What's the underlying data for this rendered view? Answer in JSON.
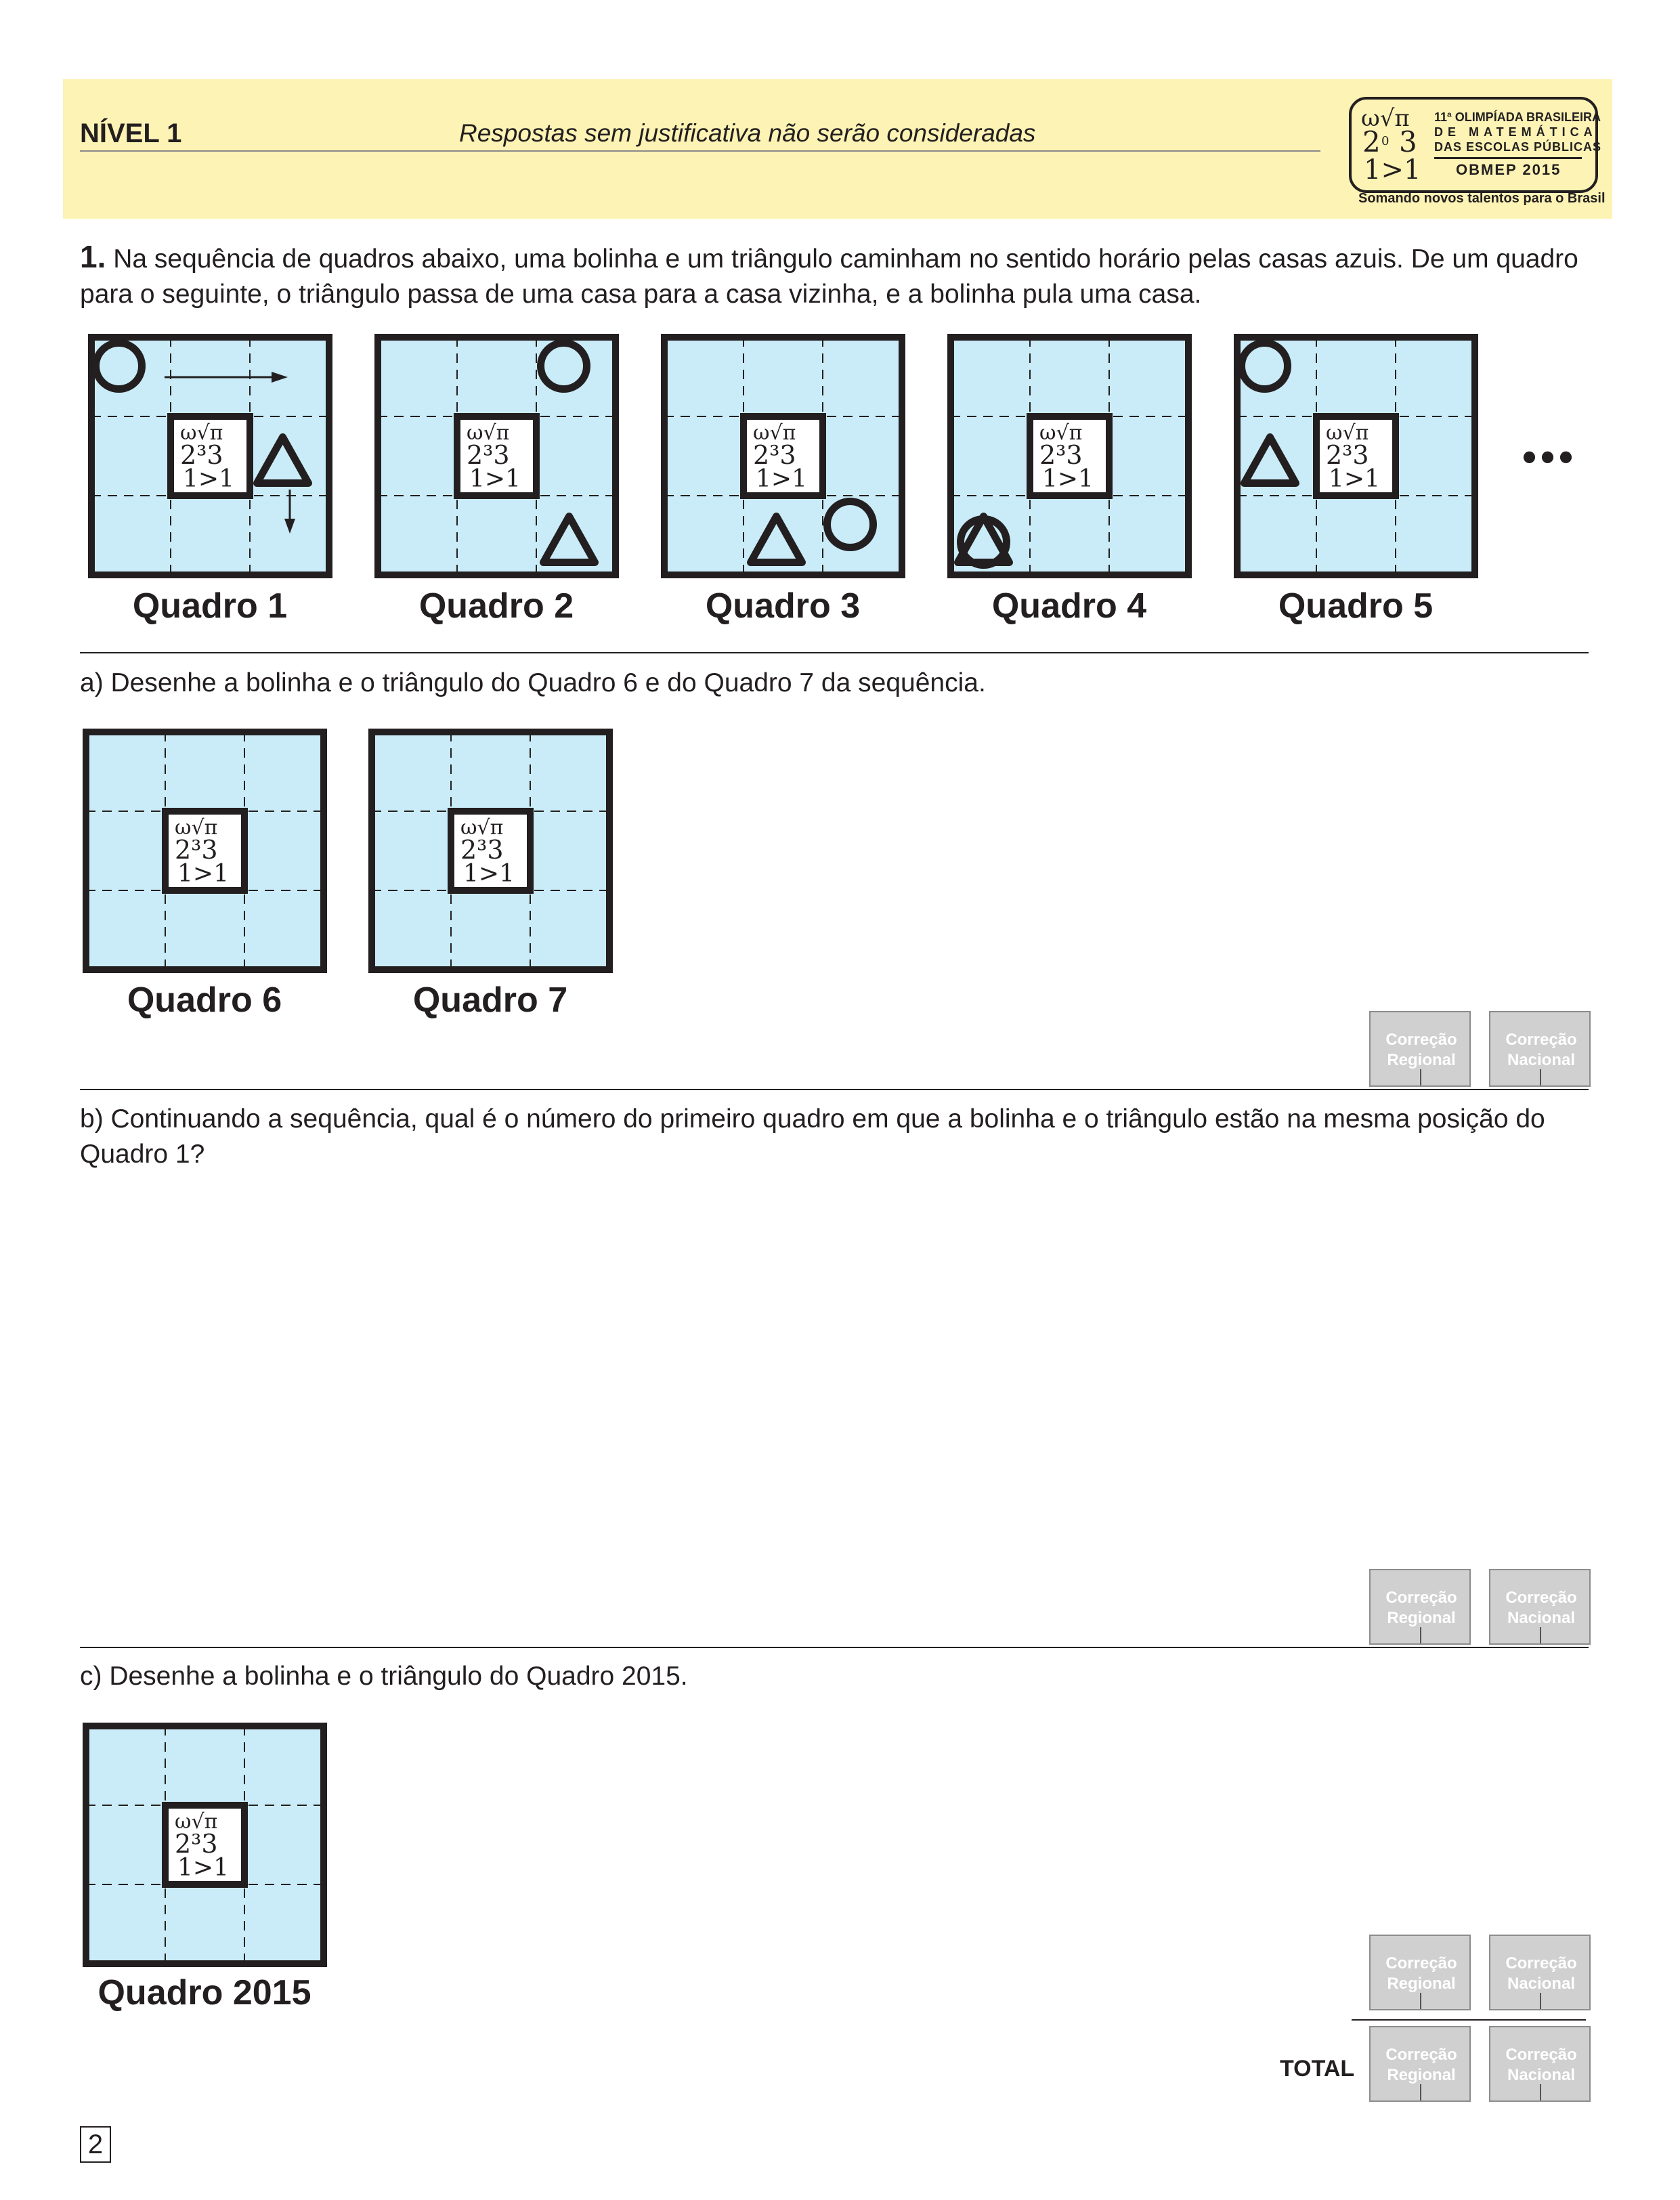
{
  "header": {
    "level": "NÍVEL 1",
    "notice": "Respostas sem justificativa não serão consideradas",
    "logo": {
      "line1": "11ª OLIMPÍADA BRASILEIRA",
      "line2": "DE MATEMÁTICA",
      "line3": "DAS ESCOLAS PÚBLICAS",
      "line4": "OBMEP 2015",
      "tagline": "Somando novos talentos para o Brasil"
    }
  },
  "question": {
    "number": "1.",
    "text": "Na sequência de quadros abaixo, uma bolinha e um triângulo caminham no sentido horário pelas casas azuis. De um quadro para o seguinte, o triângulo passa de uma casa para a casa vizinha, e a bolinha pula uma casa."
  },
  "frames": [
    {
      "label": "Quadro 1",
      "circle": "top-left",
      "triangle": "right"
    },
    {
      "label": "Quadro 2",
      "circle": "top-right",
      "triangle": "bottom-right"
    },
    {
      "label": "Quadro 3",
      "circle": "bottom-right",
      "triangle": "bottom"
    },
    {
      "label": "Quadro 4",
      "circle": "bottom-left",
      "triangle": "bottom-left"
    },
    {
      "label": "Quadro 5",
      "circle": "top-left",
      "triangle": "left"
    }
  ],
  "ellipsis": "•••",
  "part_a": {
    "text": "a) Desenhe a bolinha e o triângulo do Quadro 6 e do Quadro 7 da sequência.",
    "frames": [
      "Quadro 6",
      "Quadro 7"
    ]
  },
  "part_b": {
    "text": "b) Continuando a sequência, qual é o número do primeiro quadro em que a bolinha e o triângulo estão na mesma posição do Quadro 1?"
  },
  "part_c": {
    "text": "c) Desenhe a bolinha e o triângulo do Quadro 2015.",
    "frame": "Quadro 2015"
  },
  "correction": {
    "regional": "Correção Regional",
    "nacional": "Correção Nacional"
  },
  "total_label": "TOTAL",
  "page_number": "2",
  "colors": {
    "header_bg": "#fcf3b4",
    "cell_blue": "#c9ecf8",
    "ink": "#231f20",
    "box_grey": "#d0d0d0"
  }
}
